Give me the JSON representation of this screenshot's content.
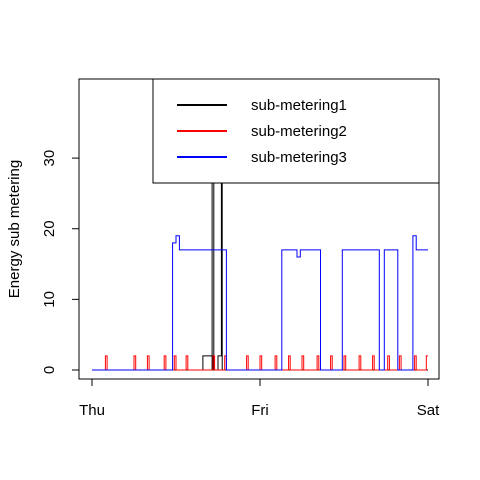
{
  "chart_data": {
    "type": "line",
    "title": "",
    "xlabel": "",
    "ylabel": "Energy sub metering",
    "x_ticks": [
      "Thu",
      "Fri",
      "Sat"
    ],
    "x_range_days": [
      0,
      2
    ],
    "ylim": [
      0,
      40
    ],
    "y_ticks": [
      0,
      10,
      20,
      30
    ],
    "grid": false,
    "legend_position": "top-right",
    "series": [
      {
        "name": "sub-metering1",
        "color": "#000000",
        "points": [
          [
            0.0,
            0
          ],
          [
            0.66,
            0
          ],
          [
            0.66,
            2
          ],
          [
            0.72,
            2
          ],
          [
            0.72,
            0
          ],
          [
            0.715,
            0
          ],
          [
            0.715,
            39
          ],
          [
            0.725,
            39
          ],
          [
            0.725,
            0
          ],
          [
            0.75,
            0
          ],
          [
            0.75,
            2
          ],
          [
            0.77,
            2
          ],
          [
            0.77,
            36
          ],
          [
            0.775,
            36
          ],
          [
            0.775,
            0
          ],
          [
            2.0,
            0
          ]
        ]
      },
      {
        "name": "sub-metering2",
        "color": "#ff0000",
        "points": [
          [
            0.0,
            0
          ],
          [
            0.08,
            0
          ],
          [
            0.08,
            2
          ],
          [
            0.09,
            2
          ],
          [
            0.09,
            0
          ],
          [
            0.25,
            0
          ],
          [
            0.25,
            2
          ],
          [
            0.26,
            2
          ],
          [
            0.26,
            0
          ],
          [
            0.33,
            0
          ],
          [
            0.33,
            2
          ],
          [
            0.34,
            2
          ],
          [
            0.34,
            0
          ],
          [
            0.43,
            0
          ],
          [
            0.43,
            2
          ],
          [
            0.44,
            2
          ],
          [
            0.44,
            0
          ],
          [
            0.49,
            0
          ],
          [
            0.49,
            2
          ],
          [
            0.5,
            2
          ],
          [
            0.5,
            0
          ],
          [
            0.56,
            0
          ],
          [
            0.56,
            2
          ],
          [
            0.57,
            2
          ],
          [
            0.57,
            0
          ],
          [
            0.72,
            0
          ],
          [
            0.72,
            2
          ],
          [
            0.73,
            2
          ],
          [
            0.73,
            0
          ],
          [
            0.79,
            0
          ],
          [
            0.79,
            2
          ],
          [
            0.8,
            2
          ],
          [
            0.8,
            0
          ],
          [
            0.92,
            0
          ],
          [
            0.92,
            2
          ],
          [
            0.93,
            2
          ],
          [
            0.93,
            0
          ],
          [
            1.0,
            0
          ],
          [
            1.0,
            2
          ],
          [
            1.01,
            2
          ],
          [
            1.01,
            0
          ],
          [
            1.09,
            0
          ],
          [
            1.09,
            2
          ],
          [
            1.1,
            2
          ],
          [
            1.1,
            0
          ],
          [
            1.17,
            0
          ],
          [
            1.17,
            2
          ],
          [
            1.18,
            2
          ],
          [
            1.18,
            0
          ],
          [
            1.25,
            0
          ],
          [
            1.25,
            2
          ],
          [
            1.26,
            2
          ],
          [
            1.26,
            0
          ],
          [
            1.34,
            0
          ],
          [
            1.34,
            2
          ],
          [
            1.35,
            2
          ],
          [
            1.35,
            0
          ],
          [
            1.42,
            0
          ],
          [
            1.42,
            2
          ],
          [
            1.43,
            2
          ],
          [
            1.43,
            0
          ],
          [
            1.5,
            0
          ],
          [
            1.5,
            2
          ],
          [
            1.51,
            2
          ],
          [
            1.51,
            0
          ],
          [
            1.59,
            0
          ],
          [
            1.59,
            2
          ],
          [
            1.6,
            2
          ],
          [
            1.6,
            0
          ],
          [
            1.67,
            0
          ],
          [
            1.67,
            2
          ],
          [
            1.68,
            2
          ],
          [
            1.68,
            0
          ],
          [
            1.76,
            0
          ],
          [
            1.76,
            2
          ],
          [
            1.77,
            2
          ],
          [
            1.77,
            0
          ],
          [
            1.83,
            0
          ],
          [
            1.83,
            2
          ],
          [
            1.84,
            2
          ],
          [
            1.84,
            0
          ],
          [
            1.92,
            0
          ],
          [
            1.92,
            2
          ],
          [
            1.93,
            2
          ],
          [
            1.93,
            0
          ],
          [
            1.99,
            0
          ],
          [
            1.99,
            2
          ],
          [
            2.0,
            2
          ]
        ]
      },
      {
        "name": "sub-metering3",
        "color": "#0000ff",
        "points": [
          [
            0.0,
            0
          ],
          [
            0.48,
            0
          ],
          [
            0.48,
            18
          ],
          [
            0.5,
            18
          ],
          [
            0.5,
            19
          ],
          [
            0.52,
            19
          ],
          [
            0.52,
            17
          ],
          [
            0.8,
            17
          ],
          [
            0.8,
            0
          ],
          [
            1.13,
            0
          ],
          [
            1.13,
            17
          ],
          [
            1.22,
            17
          ],
          [
            1.22,
            16
          ],
          [
            1.24,
            16
          ],
          [
            1.24,
            17
          ],
          [
            1.36,
            17
          ],
          [
            1.36,
            0
          ],
          [
            1.49,
            0
          ],
          [
            1.49,
            17
          ],
          [
            1.71,
            17
          ],
          [
            1.71,
            0
          ],
          [
            1.74,
            0
          ],
          [
            1.74,
            17
          ],
          [
            1.82,
            17
          ],
          [
            1.82,
            0
          ],
          [
            1.91,
            0
          ],
          [
            1.91,
            19
          ],
          [
            1.93,
            19
          ],
          [
            1.93,
            17
          ],
          [
            2.0,
            17
          ]
        ]
      }
    ]
  }
}
